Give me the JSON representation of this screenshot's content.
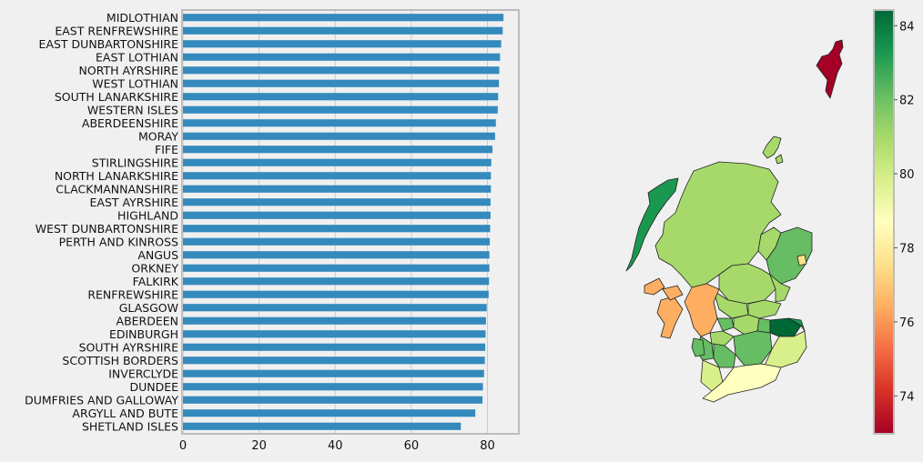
{
  "chart_data": [
    {
      "type": "bar",
      "orientation": "horizontal",
      "categories": [
        "MIDLOTHIAN",
        "EAST RENFREWSHIRE",
        "EAST DUNBARTONSHIRE",
        "EAST LOTHIAN",
        "NORTH AYRSHIRE",
        "WEST LOTHIAN",
        "SOUTH LANARKSHIRE",
        "WESTERN ISLES",
        "ABERDEENSHIRE",
        "MORAY",
        "FIFE",
        "STIRLINGSHIRE",
        "NORTH LANARKSHIRE",
        "CLACKMANNANSHIRE",
        "EAST AYRSHIRE",
        "HIGHLAND",
        "WEST DUNBARTONSHIRE",
        "PERTH AND KINROSS",
        "ANGUS",
        "ORKNEY",
        "FALKIRK",
        "RENFREWSHIRE",
        "GLASGOW",
        "ABERDEEN",
        "EDINBURGH",
        "SOUTH AYRSHIRE",
        "SCOTTISH BORDERS",
        "INVERCLYDE",
        "DUNDEE",
        "DUMFRIES AND GALLOWAY",
        "ARGYLL AND BUTE",
        "SHETLAND ISLES"
      ],
      "values": [
        84.2,
        84.0,
        83.6,
        83.3,
        83.1,
        83.0,
        82.8,
        82.7,
        82.2,
        82.0,
        81.3,
        81.0,
        80.9,
        80.9,
        80.8,
        80.8,
        80.7,
        80.6,
        80.5,
        80.5,
        80.4,
        80.3,
        79.8,
        79.6,
        79.5,
        79.4,
        79.3,
        79.1,
        78.8,
        78.7,
        76.8,
        73.0
      ],
      "xlim": [
        0,
        88
      ],
      "xticks": [
        "0",
        "20",
        "40",
        "60",
        "80"
      ],
      "grid": true,
      "bar_color": "#348abd",
      "title": "",
      "xlabel": "",
      "ylabel": ""
    },
    {
      "type": "choropleth",
      "colormap": "RdYlGn",
      "colorbar_range": [
        73.0,
        84.4
      ],
      "colorbar_ticks": [
        "74",
        "76",
        "78",
        "80",
        "82",
        "84"
      ]
    }
  ]
}
